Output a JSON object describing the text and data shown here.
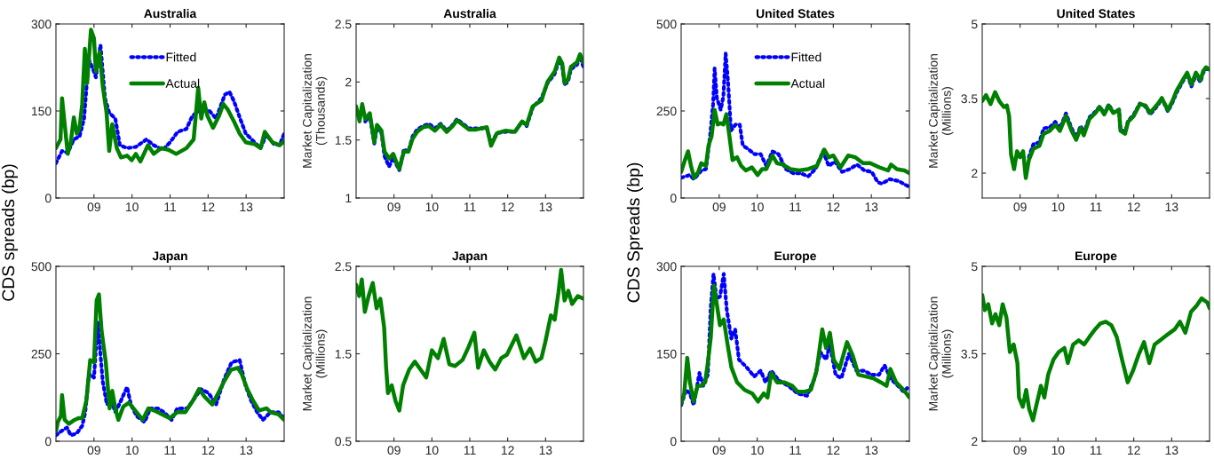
{
  "chart_data": [
    {
      "type": "line",
      "title": "Australia",
      "ylabel": "CDS spreads (bp)",
      "xlim": [
        2008,
        2014
      ],
      "xticks": [
        {
          "value": 2009,
          "label": "09"
        },
        {
          "value": 2010,
          "label": "10"
        },
        {
          "value": 2011,
          "label": "11"
        },
        {
          "value": 2012,
          "label": "12"
        },
        {
          "value": 2013,
          "label": "13"
        }
      ],
      "ylim": [
        0,
        300
      ],
      "yticks": [
        0,
        150,
        300
      ],
      "legend": "top",
      "grid": false,
      "series": [
        {
          "name": "Fitted",
          "color": "#0000ff",
          "line_style": "dotted",
          "x": [
            2008.0,
            2008.16,
            2008.31,
            2008.47,
            2008.62,
            2008.74,
            2008.86,
            2008.97,
            2009.05,
            2009.17,
            2009.29,
            2009.4,
            2009.56,
            2009.68,
            2009.87,
            2010.1,
            2010.38,
            2010.57,
            2010.81,
            2011.0,
            2011.2,
            2011.43,
            2011.59,
            2011.82,
            2012.01,
            2012.21,
            2012.44,
            2012.56,
            2012.68,
            2012.83,
            2012.99,
            2013.22,
            2013.38,
            2013.53,
            2013.73,
            2013.88,
            2014.0
          ],
          "values": [
            60,
            81,
            78,
            101,
            106,
            137,
            239,
            223,
            208,
            264,
            172,
            147,
            137,
            91,
            86,
            88,
            101,
            91,
            83,
            96,
            114,
            119,
            142,
            152,
            152,
            137,
            178,
            183,
            167,
            139,
            111,
            96,
            86,
            109,
            93,
            91,
            111
          ]
        },
        {
          "name": "Actual",
          "color": "#008000",
          "line_style": "solid",
          "x": [
            2008.0,
            2008.12,
            2008.16,
            2008.23,
            2008.31,
            2008.39,
            2008.47,
            2008.55,
            2008.62,
            2008.69,
            2008.76,
            2008.82,
            2008.92,
            2009.0,
            2009.05,
            2009.15,
            2009.23,
            2009.33,
            2009.4,
            2009.48,
            2009.6,
            2009.71,
            2009.87,
            2009.99,
            2010.1,
            2010.22,
            2010.42,
            2010.57,
            2010.77,
            2010.96,
            2011.16,
            2011.43,
            2011.62,
            2011.74,
            2011.82,
            2011.9,
            2011.98,
            2012.13,
            2012.29,
            2012.4,
            2012.52,
            2012.68,
            2012.83,
            2012.99,
            2013.22,
            2013.38,
            2013.49,
            2013.69,
            2013.88,
            2014.0
          ],
          "values": [
            86,
            101,
            172,
            127,
            76,
            96,
            139,
            111,
            121,
            162,
            257,
            198,
            290,
            275,
            218,
            252,
            193,
            147,
            81,
            127,
            86,
            70,
            73,
            65,
            76,
            63,
            91,
            76,
            86,
            83,
            76,
            86,
            101,
            190,
            137,
            165,
            142,
            121,
            142,
            162,
            152,
            132,
            111,
            96,
            93,
            86,
            114,
            96,
            91,
            98
          ]
        }
      ]
    },
    {
      "type": "line",
      "title": "Australia",
      "ylabel": "Market Capitalization\n(Thousands)",
      "xlim": [
        2008,
        2014
      ],
      "xticks": [
        {
          "value": 2009,
          "label": "09"
        },
        {
          "value": 2010,
          "label": "10"
        },
        {
          "value": 2011,
          "label": "11"
        },
        {
          "value": 2012,
          "label": "12"
        },
        {
          "value": 2013,
          "label": "13"
        }
      ],
      "ylim": [
        1,
        2.5
      ],
      "yticks": [
        1,
        1.5,
        2,
        2.5
      ],
      "grid": false,
      "x": [
        2008.0,
        2008.09,
        2008.16,
        2008.24,
        2008.36,
        2008.48,
        2008.55,
        2008.67,
        2008.75,
        2008.87,
        2008.98,
        2009.06,
        2009.14,
        2009.26,
        2009.38,
        2009.49,
        2009.61,
        2009.77,
        2009.92,
        2010.08,
        2010.23,
        2010.39,
        2010.55,
        2010.66,
        2010.82,
        2010.98,
        2011.17,
        2011.45,
        2011.56,
        2011.72,
        2011.95,
        2012.19,
        2012.38,
        2012.5,
        2012.66,
        2012.89,
        2013.05,
        2013.24,
        2013.36,
        2013.44,
        2013.5,
        2013.59,
        2013.67,
        2013.83,
        2013.91,
        2014.0
      ],
      "series": [
        {
          "color": "#0000ff",
          "line_style": "dotted",
          "values": [
            null,
            null,
            null,
            1.66,
            1.71,
            1.47,
            1.61,
            1.56,
            1.36,
            1.27,
            1.35,
            1.29,
            1.24,
            1.42,
            1.4,
            1.53,
            1.59,
            1.62,
            1.64,
            1.6,
            1.64,
            1.58,
            1.63,
            1.68,
            1.64,
            1.6,
            1.6,
            1.6,
            1.47,
            1.56,
            1.57,
            1.57,
            1.66,
            1.62,
            1.78,
            1.86,
            1.99,
            2.07,
            2.19,
            2.14,
            1.98,
            2.0,
            2.11,
            2.15,
            2.22,
            2.13
          ]
        },
        {
          "color": "#008000",
          "line_style": "solid",
          "values": [
            1.79,
            1.66,
            1.81,
            1.68,
            1.73,
            1.48,
            1.63,
            1.58,
            1.4,
            1.34,
            1.38,
            1.31,
            1.25,
            1.4,
            1.4,
            1.51,
            1.57,
            1.61,
            1.62,
            1.58,
            1.63,
            1.57,
            1.62,
            1.67,
            1.63,
            1.59,
            1.59,
            1.61,
            1.45,
            1.56,
            1.58,
            1.57,
            1.66,
            1.63,
            1.79,
            1.84,
            2.0,
            2.09,
            2.21,
            2.16,
            1.99,
            2.02,
            2.13,
            2.17,
            2.24,
            2.17
          ]
        }
      ]
    },
    {
      "type": "line",
      "title": "United States",
      "ylabel": "CDS Spreads (bp)",
      "xlim": [
        2008,
        2014
      ],
      "xticks": [
        {
          "value": 2009,
          "label": "09"
        },
        {
          "value": 2010,
          "label": "10"
        },
        {
          "value": 2011,
          "label": "11"
        },
        {
          "value": 2012,
          "label": "12"
        },
        {
          "value": 2013,
          "label": "13"
        }
      ],
      "ylim": [
        0,
        500
      ],
      "yticks": [
        0,
        250,
        500
      ],
      "legend": "top",
      "grid": false,
      "series": [
        {
          "name": "Fitted",
          "color": "#0000ff",
          "line_style": "dotted",
          "x": [
            2008.0,
            2008.22,
            2008.34,
            2008.53,
            2008.65,
            2008.76,
            2008.84,
            2008.88,
            2008.94,
            2009.04,
            2009.11,
            2009.17,
            2009.23,
            2009.31,
            2009.43,
            2009.54,
            2009.62,
            2009.78,
            2009.93,
            2010.09,
            2010.24,
            2010.4,
            2010.56,
            2010.75,
            2010.95,
            2011.14,
            2011.34,
            2011.53,
            2011.73,
            2011.88,
            2012.04,
            2012.23,
            2012.43,
            2012.62,
            2012.82,
            2013.01,
            2013.17,
            2013.28,
            2013.48,
            2013.71,
            2013.91,
            2014.0
          ],
          "values": [
            58,
            66,
            54,
            79,
            83,
            177,
            270,
            372,
            287,
            253,
            292,
            415,
            338,
            194,
            211,
            211,
            151,
            139,
            126,
            126,
            92,
            134,
            126,
            83,
            71,
            71,
            62,
            83,
            134,
            92,
            105,
            75,
            83,
            96,
            79,
            75,
            45,
            41,
            54,
            49,
            37,
            32
          ]
        },
        {
          "name": "Actual",
          "color": "#008000",
          "line_style": "solid",
          "x": [
            2008.0,
            2008.1,
            2008.18,
            2008.26,
            2008.34,
            2008.45,
            2008.53,
            2008.65,
            2008.72,
            2008.8,
            2008.88,
            2008.96,
            2009.04,
            2009.11,
            2009.19,
            2009.27,
            2009.35,
            2009.47,
            2009.58,
            2009.7,
            2009.86,
            2010.01,
            2010.13,
            2010.24,
            2010.4,
            2010.52,
            2010.67,
            2010.87,
            2011.1,
            2011.34,
            2011.57,
            2011.76,
            2011.88,
            2012.0,
            2012.19,
            2012.39,
            2012.58,
            2012.78,
            2012.97,
            2013.21,
            2013.44,
            2013.52,
            2013.67,
            2013.87,
            2014.0
          ],
          "values": [
            75,
            109,
            134,
            92,
            58,
            75,
            100,
            92,
            151,
            177,
            253,
            211,
            215,
            211,
            241,
            177,
            109,
            117,
            92,
            79,
            88,
            66,
            83,
            83,
            122,
            100,
            96,
            83,
            79,
            83,
            92,
            139,
            117,
            122,
            88,
            122,
            117,
            100,
            100,
            88,
            79,
            96,
            83,
            79,
            71
          ]
        }
      ]
    },
    {
      "type": "line",
      "title": "United States",
      "ylabel": "Market Capitalization\n(Millions)",
      "xlim": [
        2008,
        2014
      ],
      "xticks": [
        {
          "value": 2009,
          "label": "09"
        },
        {
          "value": 2010,
          "label": "10"
        },
        {
          "value": 2011,
          "label": "11"
        },
        {
          "value": 2012,
          "label": "12"
        },
        {
          "value": 2013,
          "label": "13"
        }
      ],
      "ylim": [
        1.5,
        5
      ],
      "yticks": [
        2,
        3.5,
        5
      ],
      "grid": false,
      "x": [
        2008.0,
        2008.1,
        2008.22,
        2008.34,
        2008.45,
        2008.57,
        2008.65,
        2008.71,
        2008.76,
        2008.84,
        2008.92,
        2009.0,
        2009.08,
        2009.15,
        2009.23,
        2009.35,
        2009.51,
        2009.62,
        2009.78,
        2009.93,
        2010.05,
        2010.21,
        2010.36,
        2010.48,
        2010.6,
        2010.68,
        2010.83,
        2010.99,
        2011.1,
        2011.22,
        2011.34,
        2011.46,
        2011.61,
        2011.65,
        2011.77,
        2011.85,
        2012.0,
        2012.16,
        2012.31,
        2012.43,
        2012.63,
        2012.74,
        2012.9,
        2013.02,
        2013.13,
        2013.29,
        2013.41,
        2013.52,
        2013.64,
        2013.76,
        2013.83,
        2013.91,
        2014.0
      ],
      "series": [
        {
          "color": "#0000ff",
          "line_style": "dotted",
          "values": [
            null,
            null,
            null,
            null,
            null,
            null,
            null,
            null,
            null,
            null,
            null,
            null,
            null,
            null,
            2.32,
            2.58,
            2.62,
            2.9,
            2.92,
            3.03,
            2.9,
            3.2,
            2.9,
            2.72,
            2.95,
            2.8,
            3.12,
            3.24,
            3.34,
            3.2,
            3.38,
            3.22,
            3.28,
            2.88,
            2.82,
            3.05,
            3.18,
            3.4,
            3.34,
            3.18,
            3.36,
            3.5,
            3.24,
            3.42,
            3.62,
            3.84,
            4.0,
            3.74,
            3.98,
            3.83,
            4.02,
            4.1,
            4.08
          ]
        },
        {
          "color": "#008000",
          "line_style": "solid",
          "values": [
            3.45,
            3.57,
            3.39,
            3.63,
            3.45,
            3.33,
            3.36,
            3.15,
            2.38,
            2.08,
            2.44,
            2.32,
            2.44,
            1.9,
            2.26,
            2.49,
            2.55,
            2.79,
            2.85,
            2.97,
            2.85,
            3.15,
            2.85,
            2.67,
            2.91,
            2.76,
            3.09,
            3.21,
            3.33,
            3.18,
            3.36,
            3.21,
            3.27,
            2.85,
            2.79,
            3.03,
            3.15,
            3.39,
            3.36,
            3.21,
            3.39,
            3.51,
            3.27,
            3.45,
            3.66,
            3.87,
            4.02,
            3.78,
            4.02,
            3.87,
            4.05,
            4.13,
            4.08
          ]
        }
      ]
    },
    {
      "type": "line",
      "title": "Japan",
      "xlim": [
        2008,
        2014
      ],
      "xticks": [
        {
          "value": 2009,
          "label": "09"
        },
        {
          "value": 2010,
          "label": "10"
        },
        {
          "value": 2011,
          "label": "11"
        },
        {
          "value": 2012,
          "label": "12"
        },
        {
          "value": 2013,
          "label": "13"
        }
      ],
      "ylim": [
        0,
        500
      ],
      "yticks": [
        0,
        250,
        500
      ],
      "grid": false,
      "series": [
        {
          "color": "#0000ff",
          "line_style": "dotted",
          "x": [
            2008.0,
            2008.13,
            2008.29,
            2008.39,
            2008.54,
            2008.69,
            2008.77,
            2008.87,
            2009.0,
            2009.1,
            2009.17,
            2009.23,
            2009.34,
            2009.46,
            2009.56,
            2009.71,
            2009.87,
            2009.97,
            2010.12,
            2010.33,
            2010.48,
            2010.68,
            2010.84,
            2011.04,
            2011.19,
            2011.45,
            2011.6,
            2011.81,
            2012.01,
            2012.21,
            2012.42,
            2012.62,
            2012.83,
            2012.98,
            2013.13,
            2013.29,
            2013.44,
            2013.64,
            2013.85,
            2014.0
          ],
          "values": [
            17,
            28,
            39,
            17,
            22,
            44,
            83,
            193,
            182,
            342,
            248,
            171,
            105,
            116,
            83,
            116,
            155,
            105,
            72,
            55,
            94,
            94,
            83,
            61,
            94,
            94,
            116,
            149,
            138,
            105,
            177,
            226,
            232,
            160,
            116,
            83,
            61,
            83,
            83,
            66
          ]
        },
        {
          "color": "#008000",
          "line_style": "solid",
          "x": [
            2008.0,
            2008.05,
            2008.13,
            2008.16,
            2008.23,
            2008.34,
            2008.49,
            2008.59,
            2008.69,
            2008.8,
            2008.9,
            2009.0,
            2009.07,
            2009.13,
            2009.2,
            2009.31,
            2009.41,
            2009.48,
            2009.56,
            2009.64,
            2009.77,
            2009.92,
            2010.12,
            2010.28,
            2010.43,
            2010.58,
            2010.79,
            2010.99,
            2011.19,
            2011.4,
            2011.6,
            2011.76,
            2011.91,
            2012.11,
            2012.27,
            2012.42,
            2012.6,
            2012.78,
            2012.88,
            2013.03,
            2013.18,
            2013.34,
            2013.54,
            2013.64,
            2013.85,
            2014.0
          ],
          "values": [
            28,
            55,
            72,
            132,
            61,
            50,
            61,
            66,
            66,
            116,
            232,
            226,
            403,
            420,
            315,
            226,
            94,
            144,
            94,
            61,
            99,
            110,
            83,
            61,
            94,
            88,
            77,
            66,
            83,
            83,
            116,
            149,
            127,
            105,
            138,
            171,
            204,
            210,
            193,
            149,
            116,
            88,
            94,
            83,
            77,
            61
          ]
        }
      ]
    },
    {
      "type": "line",
      "title": "Japan",
      "ylabel": "Market Capitalization\n(Millions)",
      "xlim": [
        2008,
        2014
      ],
      "xticks": [
        {
          "value": 2009,
          "label": "09"
        },
        {
          "value": 2010,
          "label": "10"
        },
        {
          "value": 2011,
          "label": "11"
        },
        {
          "value": 2012,
          "label": "12"
        },
        {
          "value": 2013,
          "label": "13"
        }
      ],
      "ylim": [
        0.5,
        2.5
      ],
      "yticks": [
        0.5,
        1.5,
        2.5
      ],
      "grid": false,
      "x": [
        2008.0,
        2008.08,
        2008.15,
        2008.23,
        2008.33,
        2008.44,
        2008.54,
        2008.64,
        2008.74,
        2008.79,
        2008.84,
        2008.94,
        2009.04,
        2009.14,
        2009.24,
        2009.4,
        2009.55,
        2009.7,
        2009.85,
        2010.0,
        2010.16,
        2010.31,
        2010.46,
        2010.61,
        2010.81,
        2010.97,
        2011.12,
        2011.22,
        2011.37,
        2011.52,
        2011.67,
        2011.83,
        2011.98,
        2012.23,
        2012.43,
        2012.59,
        2012.74,
        2012.89,
        2012.99,
        2013.14,
        2013.24,
        2013.34,
        2013.41,
        2013.5,
        2013.6,
        2013.7,
        2013.85,
        2014.0
      ],
      "series": [
        {
          "color": "#008000",
          "line_style": "solid",
          "values": [
            2.29,
            2.16,
            2.35,
            1.98,
            2.16,
            2.31,
            2.02,
            2.13,
            1.8,
            1.36,
            1.05,
            1.14,
            0.96,
            0.85,
            1.14,
            1.32,
            1.41,
            1.32,
            1.23,
            1.54,
            1.45,
            1.67,
            1.38,
            1.36,
            1.43,
            1.58,
            1.74,
            1.34,
            1.54,
            1.41,
            1.32,
            1.45,
            1.49,
            1.71,
            1.45,
            1.56,
            1.41,
            1.45,
            1.63,
            1.94,
            1.89,
            2.2,
            2.46,
            2.11,
            2.22,
            2.07,
            2.16,
            2.13
          ]
        }
      ]
    },
    {
      "type": "line",
      "title": "Europe",
      "xlim": [
        2008,
        2014
      ],
      "xticks": [
        {
          "value": 2009,
          "label": "09"
        },
        {
          "value": 2010,
          "label": "10"
        },
        {
          "value": 2011,
          "label": "11"
        },
        {
          "value": 2012,
          "label": "12"
        },
        {
          "value": 2013,
          "label": "13"
        }
      ],
      "ylim": [
        0,
        300
      ],
      "yticks": [
        0,
        150,
        300
      ],
      "grid": false,
      "series": [
        {
          "color": "#0000ff",
          "line_style": "dotted",
          "x": [
            2008.0,
            2008.13,
            2008.23,
            2008.33,
            2008.48,
            2008.58,
            2008.7,
            2008.78,
            2008.85,
            2008.93,
            2009.02,
            2009.12,
            2009.2,
            2009.32,
            2009.42,
            2009.52,
            2009.72,
            2009.92,
            2010.09,
            2010.22,
            2010.37,
            2010.57,
            2010.82,
            2011.06,
            2011.31,
            2011.51,
            2011.66,
            2011.81,
            2011.91,
            2012.06,
            2012.21,
            2012.41,
            2012.61,
            2012.81,
            2013.0,
            2013.2,
            2013.35,
            2013.5,
            2013.7,
            2013.85,
            2014.0
          ],
          "values": [
            62,
            88,
            82,
            62,
            117,
            95,
            114,
            231,
            287,
            245,
            248,
            287,
            225,
            176,
            192,
            140,
            127,
            111,
            121,
            101,
            121,
            104,
            95,
            82,
            78,
            108,
            153,
            140,
            166,
            114,
            108,
            150,
            121,
            121,
            114,
            114,
            130,
            108,
            95,
            85,
            95
          ]
        },
        {
          "color": "#008000",
          "line_style": "solid",
          "x": [
            2008.0,
            2008.08,
            2008.16,
            2008.23,
            2008.33,
            2008.43,
            2008.53,
            2008.63,
            2008.7,
            2008.78,
            2008.86,
            2008.93,
            2009.02,
            2009.12,
            2009.22,
            2009.32,
            2009.47,
            2009.67,
            2009.87,
            2010.02,
            2010.17,
            2010.27,
            2010.37,
            2010.52,
            2010.72,
            2010.92,
            2011.06,
            2011.26,
            2011.41,
            2011.56,
            2011.71,
            2011.81,
            2011.91,
            2012.01,
            2012.16,
            2012.36,
            2012.51,
            2012.66,
            2012.86,
            2013.05,
            2013.25,
            2013.4,
            2013.5,
            2013.65,
            2013.85,
            2014.0
          ],
          "values": [
            65,
            82,
            143,
            101,
            68,
            95,
            95,
            101,
            134,
            179,
            267,
            238,
            199,
            209,
            166,
            127,
            101,
            88,
            82,
            68,
            82,
            75,
            117,
            101,
            101,
            95,
            85,
            85,
            88,
            121,
            192,
            160,
            186,
            140,
            124,
            170,
            147,
            114,
            111,
            108,
            101,
            95,
            124,
            101,
            88,
            75
          ]
        }
      ]
    },
    {
      "type": "line",
      "title": "Europe",
      "ylabel": "Market Capitalization\n(Millions)",
      "xlim": [
        2008,
        2014
      ],
      "xticks": [
        {
          "value": 2009,
          "label": "09"
        },
        {
          "value": 2010,
          "label": "10"
        },
        {
          "value": 2011,
          "label": "11"
        },
        {
          "value": 2012,
          "label": "12"
        },
        {
          "value": 2013,
          "label": "13"
        }
      ],
      "ylim": [
        2,
        5
      ],
      "yticks": [
        2,
        3.5,
        5
      ],
      "grid": false,
      "x": [
        2008.0,
        2008.07,
        2008.16,
        2008.26,
        2008.35,
        2008.45,
        2008.54,
        2008.64,
        2008.73,
        2008.83,
        2008.93,
        2008.97,
        2009.07,
        2009.16,
        2009.24,
        2009.34,
        2009.43,
        2009.55,
        2009.64,
        2009.74,
        2009.88,
        2010.02,
        2010.17,
        2010.26,
        2010.4,
        2010.55,
        2010.69,
        2010.83,
        2010.98,
        2011.12,
        2011.26,
        2011.41,
        2011.55,
        2011.69,
        2011.84,
        2011.98,
        2012.12,
        2012.27,
        2012.41,
        2012.55,
        2012.69,
        2012.89,
        2013.08,
        2013.22,
        2013.36,
        2013.51,
        2013.65,
        2013.79,
        2013.94,
        2014.0
      ],
      "series": [
        {
          "color": "#008000",
          "line_style": "solid",
          "values": [
            4.51,
            4.25,
            4.35,
            4.02,
            4.18,
            3.99,
            4.35,
            4.12,
            3.53,
            3.66,
            3.34,
            2.75,
            2.59,
            2.88,
            2.55,
            2.36,
            2.62,
            2.95,
            2.75,
            3.14,
            3.4,
            3.53,
            3.6,
            3.34,
            3.66,
            3.73,
            3.66,
            3.79,
            3.92,
            4.02,
            4.05,
            3.99,
            3.79,
            3.4,
            3.01,
            3.21,
            3.47,
            3.7,
            3.34,
            3.66,
            3.73,
            3.83,
            3.92,
            4.05,
            3.86,
            4.22,
            4.32,
            4.45,
            4.38,
            4.28
          ]
        }
      ]
    }
  ]
}
